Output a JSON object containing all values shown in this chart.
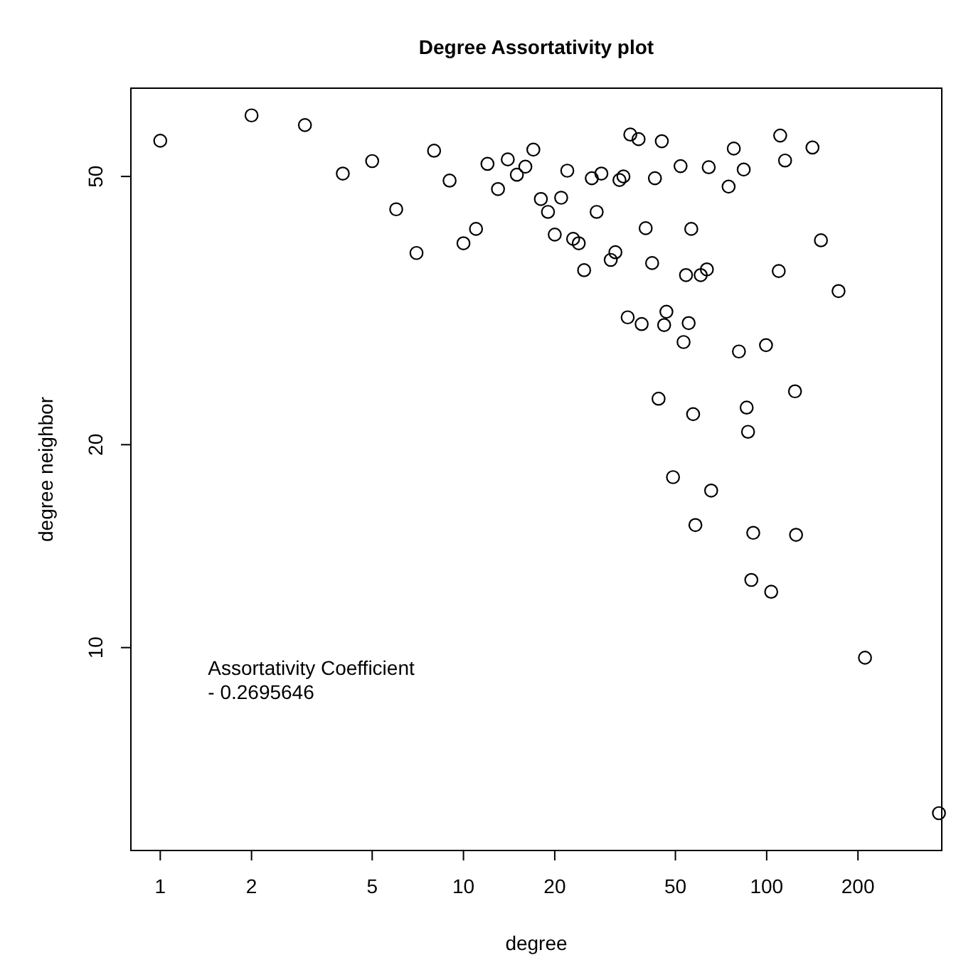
{
  "chart_data": {
    "type": "scatter",
    "title": "Degree Assortativity plot",
    "xlabel": "degree",
    "ylabel": "degree neighbor",
    "log": "xy",
    "marker": "circle",
    "xlim": [
      0.8,
      378
    ],
    "ylim": [
      5.0,
      67.6
    ],
    "xticks": [
      1,
      2,
      5,
      10,
      20,
      50,
      100,
      200
    ],
    "yticks": [
      10,
      20,
      50
    ],
    "annotations": [
      "Assortativity Coefficient\n- 0.2695646"
    ],
    "series": [
      {
        "color": "#000000",
        "x": [
          1,
          2,
          3,
          4,
          5,
          6,
          7,
          8,
          9,
          10,
          11,
          12,
          13,
          14,
          15,
          16,
          17,
          18,
          19,
          20,
          21,
          22,
          23,
          24,
          25,
          26.5,
          27.5,
          28.5,
          30.6,
          31.7,
          32.7,
          33.7,
          34.8,
          35.5,
          37.8,
          38.7,
          39.9,
          41.9,
          42.8,
          44,
          45.1,
          45.9,
          46.7,
          49.1,
          52,
          53.2,
          54.2,
          55.3,
          56.4,
          57.2,
          58.2,
          60.6,
          63.5,
          64.4,
          65.6,
          74.9,
          77.9,
          81,
          84,
          85.9,
          86.8,
          89,
          90.3,
          99.5,
          103.5,
          109.6,
          110.8,
          115,
          124,
          125,
          141.6,
          151,
          172.6,
          211,
          370
        ],
        "values": [
          56.5,
          61.6,
          59.6,
          50.5,
          52.7,
          44.7,
          38.5,
          54.6,
          49.3,
          39.8,
          41.8,
          52.2,
          47.9,
          53.0,
          50.3,
          51.7,
          54.8,
          46.3,
          44.3,
          41.0,
          46.5,
          51.0,
          40.4,
          39.8,
          36.3,
          49.7,
          44.3,
          50.5,
          37.6,
          38.6,
          49.4,
          50.0,
          30.9,
          57.7,
          56.8,
          30.2,
          41.9,
          37.2,
          49.7,
          23.4,
          56.4,
          30.1,
          31.5,
          17.9,
          51.8,
          28.4,
          35.7,
          30.3,
          41.8,
          22.2,
          15.2,
          35.7,
          36.4,
          51.6,
          17.1,
          48.3,
          55.0,
          27.5,
          51.2,
          22.7,
          20.9,
          12.6,
          14.8,
          28.1,
          12.1,
          36.2,
          57.5,
          52.8,
          24.0,
          14.7,
          55.2,
          40.2,
          33.8,
          9.66,
          5.68
        ]
      }
    ]
  }
}
